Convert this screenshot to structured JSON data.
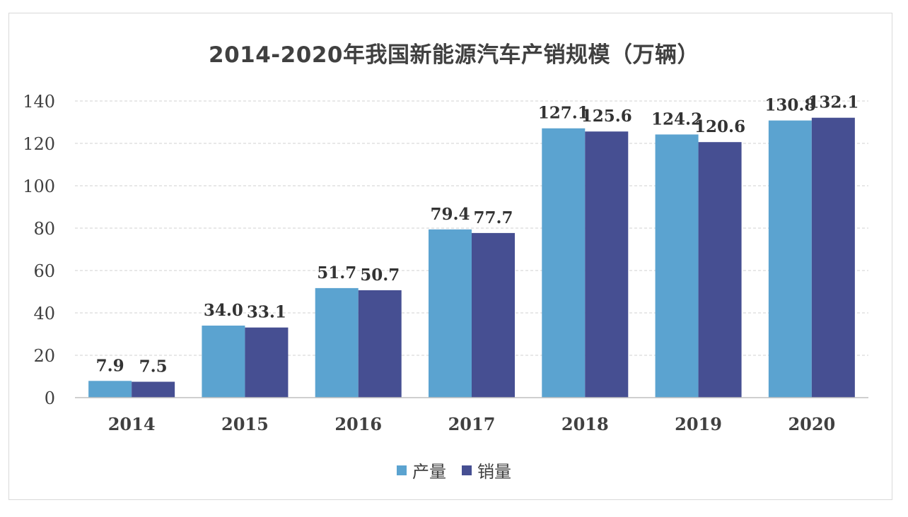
{
  "chart_data": {
    "type": "bar",
    "title": "2014-2020年我国新能源汽车产销规模（万辆）",
    "categories": [
      "2014",
      "2015",
      "2016",
      "2017",
      "2018",
      "2019",
      "2020"
    ],
    "series": [
      {
        "name": "产量",
        "color": "#5ba3d0",
        "values": [
          7.9,
          34.0,
          51.7,
          79.4,
          127.1,
          124.2,
          130.8
        ],
        "labels": [
          "7.9",
          "34.0",
          "51.7",
          "79.4",
          "127.1",
          "124.2",
          "130.8"
        ]
      },
      {
        "name": "销量",
        "color": "#464f92",
        "values": [
          7.5,
          33.1,
          50.7,
          77.7,
          125.6,
          120.6,
          132.1
        ],
        "labels": [
          "7.5",
          "33.1",
          "50.7",
          "77.7",
          "125.6",
          "120.6",
          "132.1"
        ]
      }
    ],
    "ylim": [
      0,
      140
    ],
    "yticks": [
      "0",
      "20",
      "40",
      "60",
      "80",
      "100",
      "120",
      "140"
    ],
    "ytick_values": [
      0,
      20,
      40,
      60,
      80,
      100,
      120,
      140
    ],
    "xlabel": "",
    "ylabel": "",
    "grid": true,
    "legend_position": "bottom"
  }
}
